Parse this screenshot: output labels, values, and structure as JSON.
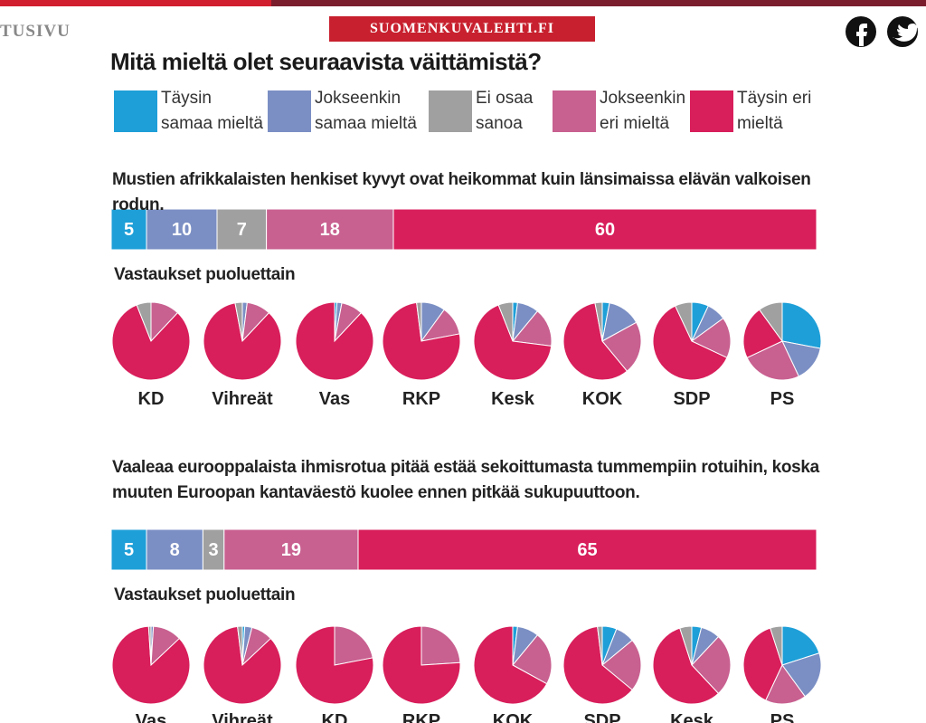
{
  "header": {
    "nav": "TUSIVU",
    "brand": "SUOMENKUVALEHTI.FI"
  },
  "chart_data": [
    {
      "type": "stacked-bar",
      "title": "Mitä mieltä olet seuraavista väittämistä?",
      "categories": [
        "Mustien afrikkalaisten henkiset kyvyt ovat heikommat kuin länsimaissa elävän valkoisen rodun.",
        "Vaaleaa eurooppalaista ihmisrotua pitää estää sekoittumasta tummempiin rotuihin, koska muuten Euroopan kantaväestö kuolee ennen pitkää sukupuuttoon."
      ],
      "series": [
        {
          "name": "Täysin samaa mieltä",
          "color": "#1e9fd8",
          "values": [
            5,
            5
          ]
        },
        {
          "name": "Jokseenkin samaa mieltä",
          "color": "#7b8fc4",
          "values": [
            10,
            8
          ]
        },
        {
          "name": "Ei osaa sanoa",
          "color": "#a0a0a0",
          "values": [
            7,
            3
          ]
        },
        {
          "name": "Jokseenkin eri mieltä",
          "color": "#c86090",
          "values": [
            18,
            19
          ]
        },
        {
          "name": "Täysin eri mieltä",
          "color": "#d81e5b",
          "values": [
            60,
            65
          ]
        }
      ]
    },
    {
      "type": "pie",
      "title": "Vastaukset puoluettain",
      "categories": [
        "KD",
        "Vihreät",
        "Vas",
        "RKP",
        "Kesk",
        "KOK",
        "SDP",
        "PS"
      ],
      "values": [
        [
          0,
          0,
          6,
          12,
          82
        ],
        [
          0,
          2,
          3,
          10,
          85
        ],
        [
          1,
          2,
          0,
          9,
          88
        ],
        [
          0,
          10,
          2,
          12,
          76
        ],
        [
          2,
          9,
          6,
          16,
          67
        ],
        [
          3,
          14,
          3,
          22,
          58
        ],
        [
          7,
          8,
          7,
          17,
          61
        ],
        [
          28,
          15,
          10,
          25,
          22
        ]
      ]
    },
    {
      "type": "pie",
      "title": "Vastaukset puoluettain",
      "categories": [
        "Vas",
        "Vihreät",
        "KD",
        "RKP",
        "KOK",
        "SDP",
        "Kesk",
        "PS"
      ],
      "values": [
        [
          0,
          1,
          1,
          12,
          86
        ],
        [
          1,
          3,
          2,
          9,
          85
        ],
        [
          0,
          0,
          0,
          22,
          78
        ],
        [
          0,
          0,
          0,
          24,
          76
        ],
        [
          2,
          9,
          0,
          22,
          67
        ],
        [
          6,
          8,
          2,
          22,
          62
        ],
        [
          4,
          8,
          5,
          26,
          57
        ],
        [
          20,
          20,
          5,
          17,
          38
        ]
      ]
    }
  ]
}
